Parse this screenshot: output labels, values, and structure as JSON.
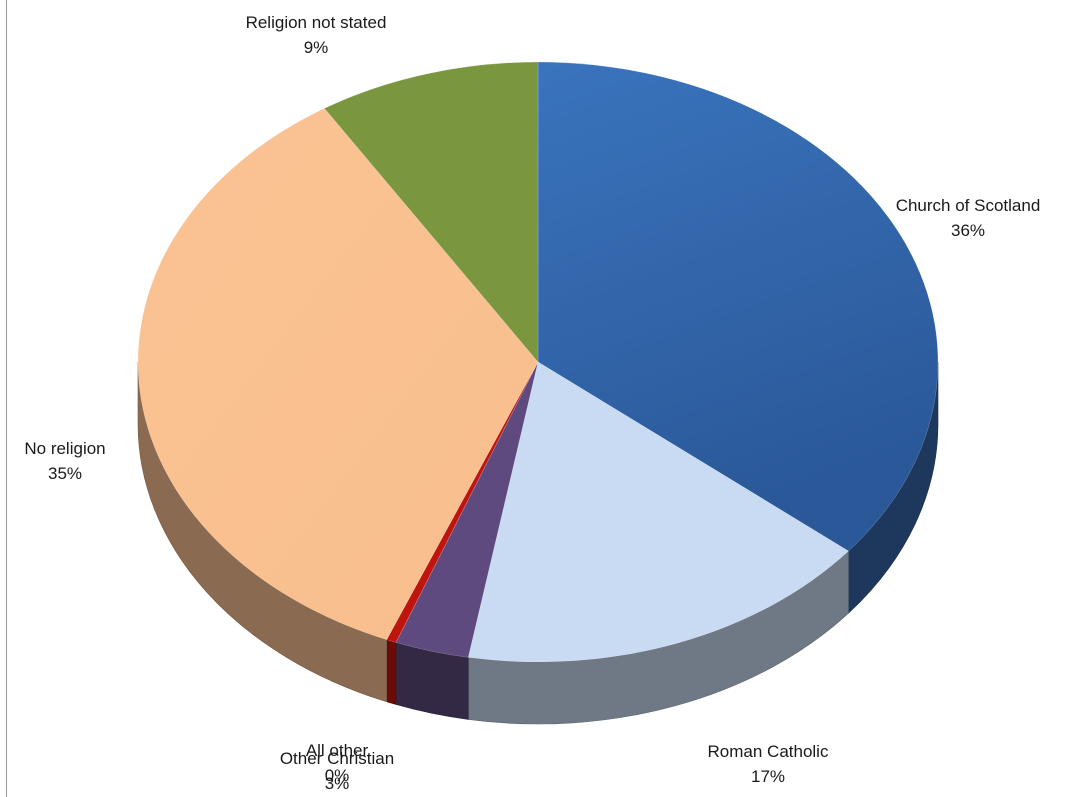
{
  "chart_data": {
    "type": "pie",
    "style": "3d",
    "slices": [
      {
        "label": "Church of Scotland",
        "value": 36,
        "display": "36%",
        "color": "#3566A8"
      },
      {
        "label": "Roman Catholic",
        "value": 17,
        "display": "17%",
        "color": "#C9DBF2"
      },
      {
        "label": "Other Christian",
        "value": 3,
        "display": "3%",
        "color": "#5E4A7E"
      },
      {
        "label": "All other",
        "value": 0.4,
        "display": "0%",
        "color": "#C0140F"
      },
      {
        "label": "No religion",
        "value": 35,
        "display": "35%",
        "color": "#FBC393"
      },
      {
        "label": "Religion not stated",
        "value": 9,
        "display": "9%",
        "color": "#7A963E"
      }
    ]
  }
}
